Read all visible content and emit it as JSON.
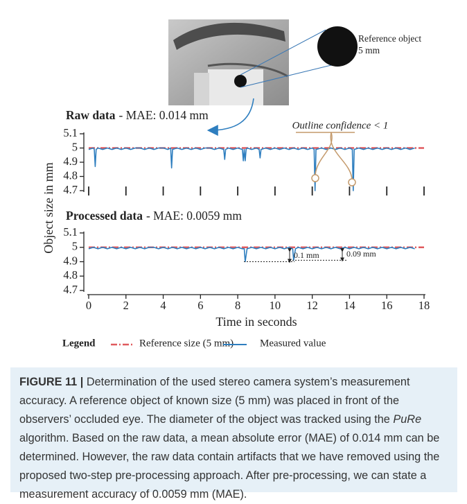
{
  "photo": {
    "callout_lines": [
      "Reference object",
      "5 mm"
    ]
  },
  "chart_data": [
    {
      "type": "line",
      "title": "Raw data",
      "subtitle": "- MAE: 0.014 mm",
      "x": [
        0,
        0.25,
        0.3,
        0.35,
        0.4,
        0.5,
        0.75,
        1,
        1.25,
        1.5,
        1.75,
        2,
        2.25,
        2.5,
        2.75,
        3,
        3.25,
        3.5,
        3.75,
        4,
        4.25,
        4.4,
        4.45,
        4.5,
        4.75,
        5,
        5.25,
        5.5,
        5.75,
        6,
        6.25,
        6.5,
        6.75,
        7,
        7.25,
        7.3,
        7.35,
        7.5,
        7.75,
        8,
        8.25,
        8.3,
        8.35,
        8.4,
        8.45,
        8.5,
        8.75,
        9,
        9.15,
        9.2,
        9.25,
        9.5,
        9.75,
        10,
        10.25,
        10.5,
        10.75,
        11,
        11.25,
        11.5,
        11.75,
        12,
        12.1,
        12.15,
        12.2,
        12.5,
        12.75,
        13,
        13.25,
        13.5,
        13.75,
        14,
        14.15,
        14.2,
        14.25,
        14.5,
        14.75,
        15,
        15.25,
        15.5,
        15.75,
        16,
        16.25,
        16.5,
        16.75,
        17,
        17.25,
        17.5
      ],
      "series": [
        {
          "color": "#2e7ebf",
          "values": [
            4.99,
            5,
            4.99,
            4.87,
            4.99,
            5,
            4.99,
            5,
            4.99,
            5,
            4.99,
            5,
            4.99,
            5,
            5,
            4.99,
            5,
            4.99,
            5,
            5,
            4.99,
            5,
            4.86,
            4.99,
            5,
            4.99,
            5,
            4.99,
            5,
            4.99,
            5,
            5,
            4.99,
            5,
            4.99,
            4.92,
            4.99,
            5,
            4.99,
            5,
            4.99,
            4.91,
            4.99,
            4.91,
            4.99,
            5,
            4.99,
            5,
            4.99,
            4.93,
            4.99,
            5,
            4.99,
            5,
            4.99,
            5,
            4.99,
            5,
            4.99,
            5,
            4.99,
            5,
            4.99,
            4.7,
            4.99,
            5,
            4.99,
            5,
            4.99,
            5,
            4.99,
            5,
            4.99,
            4.7,
            4.99,
            5,
            4.99,
            5,
            4.99,
            5,
            4.99,
            5,
            4.99,
            5,
            4.99,
            5,
            4.99,
            5
          ]
        }
      ],
      "reference": {
        "color": "#e05a5e",
        "value": 5
      },
      "xlim": [
        0,
        18
      ],
      "xticks": [
        0,
        2,
        4,
        6,
        8,
        10,
        12,
        14,
        16,
        18
      ],
      "xtick_labels": false,
      "ylim": [
        4.7,
        5.1
      ],
      "yticks": [
        4.7,
        4.8,
        4.9,
        5,
        5.1
      ],
      "annotations": [
        {
          "text": "Outline confidence < 1",
          "color": "#c49a6c"
        }
      ]
    },
    {
      "type": "line",
      "title": "Processed data",
      "subtitle": "- MAE: 0.0059 mm",
      "x": [
        0,
        0.25,
        0.5,
        0.75,
        1,
        1.25,
        1.5,
        1.75,
        2,
        2.25,
        2.5,
        2.75,
        3,
        3.25,
        3.5,
        3.75,
        4,
        4.25,
        4.5,
        4.75,
        5,
        5.25,
        5.5,
        5.75,
        6,
        6.25,
        6.5,
        6.75,
        7,
        7.25,
        7.5,
        7.75,
        8,
        8.25,
        8.35,
        8.4,
        8.5,
        8.75,
        9,
        9.25,
        9.5,
        9.75,
        10,
        10.25,
        10.5,
        10.75,
        10.95,
        11,
        11.1,
        11.25,
        11.5,
        11.75,
        12,
        12.25,
        12.5,
        12.75,
        13,
        13.25,
        13.5,
        13.75,
        14,
        14.25,
        14.5,
        14.75,
        15,
        15.25,
        15.5,
        15.75,
        16,
        16.25,
        16.5,
        16.75,
        17,
        17.25,
        17.5
      ],
      "series": [
        {
          "name": "Measured value",
          "color": "#2e7ebf",
          "values": [
            4.99,
            5,
            4.99,
            5,
            4.99,
            5,
            4.99,
            5,
            4.99,
            5,
            4.99,
            5,
            4.99,
            5,
            5,
            4.99,
            5,
            4.99,
            5,
            4.99,
            5,
            4.99,
            5,
            4.99,
            5,
            4.99,
            5,
            4.99,
            5,
            4.99,
            5,
            4.99,
            5,
            4.99,
            4.99,
            4.9,
            4.99,
            5,
            4.99,
            5,
            4.99,
            5,
            4.99,
            5,
            4.99,
            5,
            4.99,
            4.91,
            4.99,
            5,
            4.99,
            5,
            4.99,
            5,
            4.99,
            5,
            4.99,
            5,
            4.99,
            5,
            4.99,
            5,
            4.99,
            5,
            4.99,
            5,
            4.99,
            5,
            4.99,
            5,
            4.99,
            5,
            4.99,
            5,
            4.99
          ]
        }
      ],
      "reference": {
        "name": "Reference size (5 mm)",
        "color": "#e05a5e",
        "value": 5
      },
      "xlim": [
        0,
        18
      ],
      "xticks": [
        0,
        2,
        4,
        6,
        8,
        10,
        12,
        14,
        16,
        18
      ],
      "xtick_labels": true,
      "ylim": [
        4.7,
        5.1
      ],
      "yticks": [
        4.7,
        4.8,
        4.9,
        5,
        5.1
      ],
      "xlabel": "Time in seconds",
      "ylabel": "Object size in mm",
      "annotations": [
        {
          "text": "0.1 mm",
          "color": "#222222"
        },
        {
          "text": "0.09 mm",
          "color": "#222222"
        }
      ]
    }
  ],
  "legend": {
    "title": "Legend"
  },
  "caption": {
    "label": "FIGURE 11 |",
    "text_before": " Determination of the used stereo camera system’s measurement accuracy. A reference object of known size (5 mm) was placed in front of the observers’ occluded eye. The diameter of the object was tracked using the ",
    "emphasis": "PuRe",
    "text_after": " algorithm. Based on the raw data, a mean absolute error (MAE) of 0.014 mm can be determined. However, the raw data contain artifacts that we have removed using the proposed two-step pre-processing approach. After pre-processing, we can state a measurement accuracy of 0.0059 mm (MAE)."
  }
}
